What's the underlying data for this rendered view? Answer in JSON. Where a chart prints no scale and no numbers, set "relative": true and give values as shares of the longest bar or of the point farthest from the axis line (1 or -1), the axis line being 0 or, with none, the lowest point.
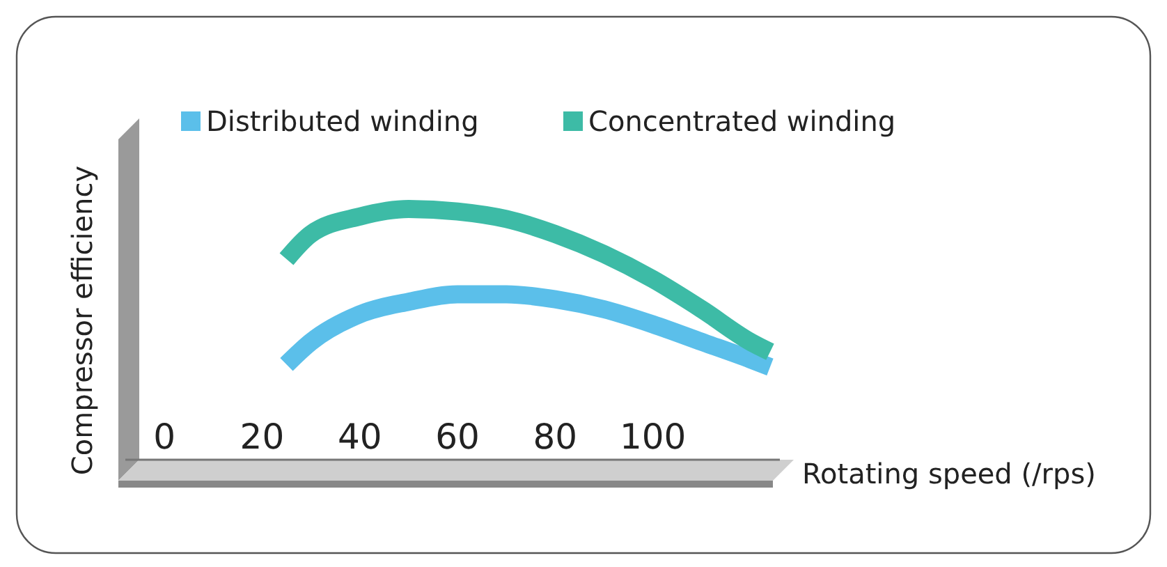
{
  "chart_data": {
    "type": "line",
    "relative": true,
    "xlabel": "Rotating speed (/rps)",
    "ylabel": "Compressor efficiency",
    "xlim": [
      -8,
      126
    ],
    "xticks": [
      0,
      20,
      40,
      60,
      80,
      100
    ],
    "legend": "top",
    "grid": false,
    "marker": "none",
    "x": [
      25,
      30,
      40,
      50,
      60,
      70,
      80,
      90,
      100,
      110,
      120,
      124
    ],
    "series": [
      {
        "name": "Distributed winding",
        "color": "#5bbfea",
        "values": [
          0.38,
          0.47,
          0.58,
          0.63,
          0.66,
          0.66,
          0.64,
          0.6,
          0.54,
          0.47,
          0.4,
          0.37
        ]
      },
      {
        "name": "Concentrated winding",
        "color": "#3dbba6",
        "values": [
          0.8,
          0.9,
          0.97,
          1.0,
          0.99,
          0.96,
          0.9,
          0.82,
          0.72,
          0.6,
          0.47,
          0.43
        ]
      }
    ]
  }
}
